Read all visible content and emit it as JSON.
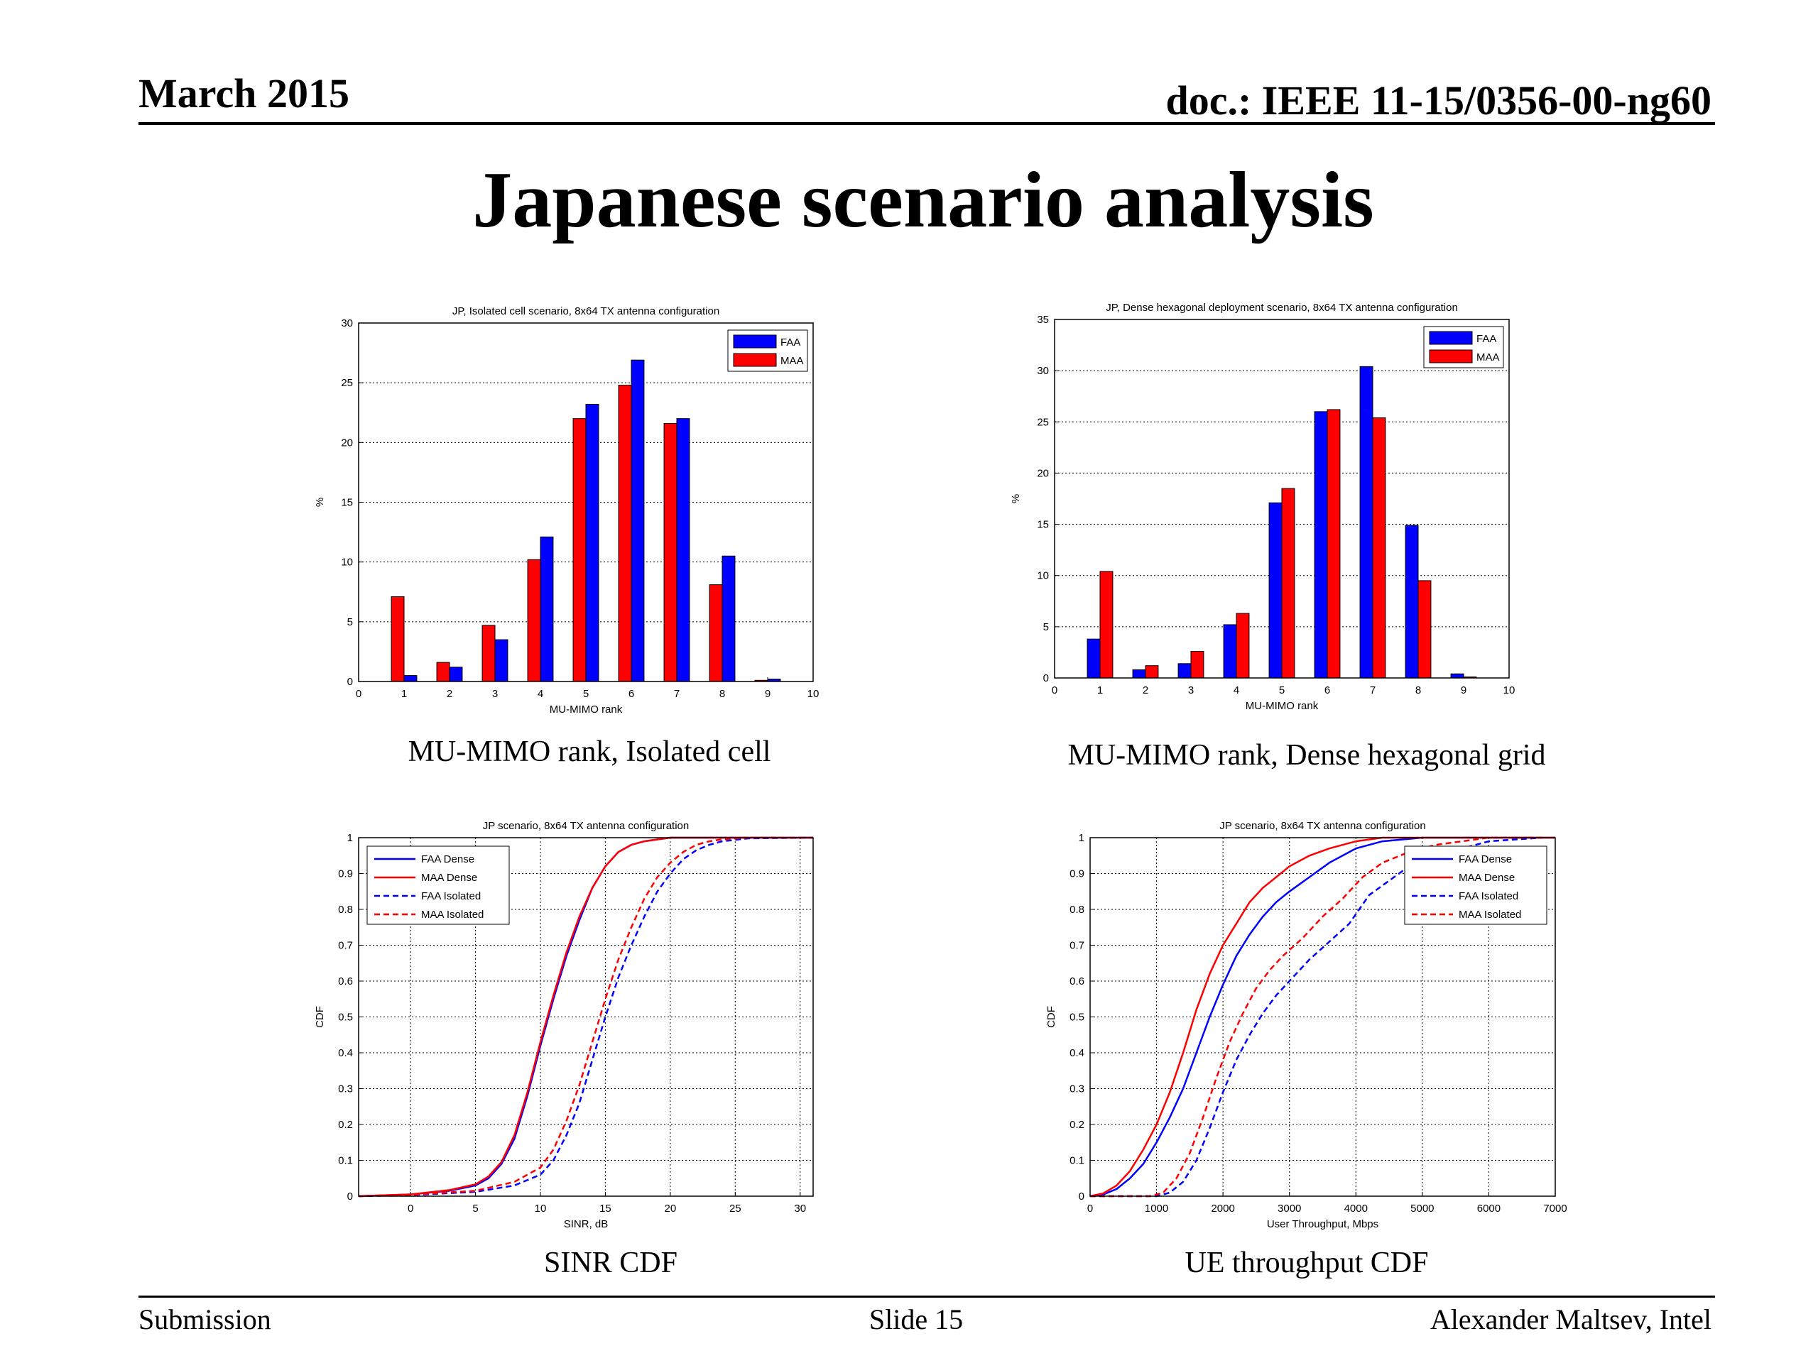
{
  "header": {
    "date": "March 2015",
    "doc": "doc.: IEEE 11-15/0356-00-ng60"
  },
  "title": "Japanese scenario analysis",
  "footer": {
    "left": "Submission",
    "center": "Slide 15",
    "right": "Alexander Maltsev, Intel"
  },
  "captions": {
    "c1": "MU-MIMO rank, Isolated cell",
    "c2": "MU-MIMO rank, Dense hexagonal grid",
    "c3": "SINR CDF",
    "c4": "UE throughput CDF"
  },
  "colors": {
    "faa": "#0000ff",
    "maa": "#ff0000"
  },
  "chart_data": [
    {
      "type": "bar",
      "title": "JP, Isolated cell scenario, 8x64 TX antenna configuration",
      "xlabel": "MU-MIMO rank",
      "ylabel": "%",
      "xlim": [
        0,
        10
      ],
      "ylim": [
        0,
        30
      ],
      "xticks": [
        0,
        1,
        2,
        3,
        4,
        5,
        6,
        7,
        8,
        9,
        10
      ],
      "yticks": [
        0,
        5,
        10,
        15,
        20,
        25,
        30
      ],
      "categories": [
        1,
        2,
        3,
        4,
        5,
        6,
        7,
        8,
        9
      ],
      "series": [
        {
          "name": "FAA",
          "values": [
            0.5,
            1.2,
            3.5,
            12.1,
            23.2,
            26.9,
            22.0,
            10.5,
            0.2
          ]
        },
        {
          "name": "MAA",
          "values": [
            7.1,
            1.6,
            4.7,
            10.2,
            22.0,
            24.8,
            21.6,
            8.1,
            0.1
          ]
        }
      ],
      "legend": [
        "FAA",
        "MAA"
      ],
      "bar_order": [
        "MAA",
        "FAA"
      ],
      "legend_position": "top-right"
    },
    {
      "type": "bar",
      "title": "JP, Dense hexagonal deployment scenario, 8x64 TX antenna configuration",
      "xlabel": "MU-MIMO rank",
      "ylabel": "%",
      "xlim": [
        0,
        10
      ],
      "ylim": [
        0,
        35
      ],
      "xticks": [
        0,
        1,
        2,
        3,
        4,
        5,
        6,
        7,
        8,
        9,
        10
      ],
      "yticks": [
        0,
        5,
        10,
        15,
        20,
        25,
        30,
        35
      ],
      "categories": [
        1,
        2,
        3,
        4,
        5,
        6,
        7,
        8,
        9
      ],
      "series": [
        {
          "name": "FAA",
          "values": [
            3.8,
            0.8,
            1.4,
            5.2,
            17.1,
            26.0,
            30.4,
            14.9,
            0.4
          ]
        },
        {
          "name": "MAA",
          "values": [
            10.4,
            1.2,
            2.6,
            6.3,
            18.5,
            26.2,
            25.4,
            9.5,
            0.1
          ]
        }
      ],
      "legend": [
        "FAA",
        "MAA"
      ],
      "bar_order": [
        "FAA",
        "MAA"
      ],
      "legend_position": "top-right"
    },
    {
      "type": "line",
      "title": "JP scenario, 8x64 TX antenna configuration",
      "xlabel": "SINR, dB",
      "ylabel": "CDF",
      "xlim": [
        -4,
        31
      ],
      "ylim": [
        0,
        1
      ],
      "xticks": [
        0,
        5,
        10,
        15,
        20,
        25,
        30
      ],
      "yticks": [
        0,
        0.1,
        0.2,
        0.3,
        0.4,
        0.5,
        0.6,
        0.7,
        0.8,
        0.9,
        1
      ],
      "legend_position": "top-left",
      "series": [
        {
          "name": "FAA Dense",
          "style": "solid",
          "color": "#0000ff",
          "x": [
            -4,
            0,
            3,
            5,
            6,
            7,
            8,
            9,
            10,
            11,
            12,
            13,
            14,
            15,
            16,
            17,
            18,
            19,
            20,
            22,
            31
          ],
          "y": [
            0,
            0.005,
            0.015,
            0.03,
            0.05,
            0.09,
            0.16,
            0.28,
            0.42,
            0.55,
            0.67,
            0.77,
            0.86,
            0.92,
            0.96,
            0.98,
            0.99,
            0.995,
            1,
            1,
            1
          ]
        },
        {
          "name": "MAA Dense",
          "style": "solid",
          "color": "#ff0000",
          "x": [
            -4,
            0,
            3,
            5,
            6,
            7,
            8,
            9,
            10,
            11,
            12,
            13,
            14,
            15,
            16,
            17,
            18,
            19,
            20,
            22,
            31
          ],
          "y": [
            0,
            0.005,
            0.017,
            0.033,
            0.055,
            0.095,
            0.17,
            0.29,
            0.43,
            0.56,
            0.68,
            0.78,
            0.86,
            0.92,
            0.96,
            0.98,
            0.99,
            0.995,
            1,
            1,
            1
          ]
        },
        {
          "name": "FAA Isolated",
          "style": "dashed",
          "color": "#0000ff",
          "x": [
            -4,
            0,
            5,
            8,
            10,
            11,
            12,
            13,
            14,
            15,
            16,
            17,
            18,
            19,
            20,
            21,
            22,
            23,
            24,
            26,
            31
          ],
          "y": [
            0,
            0.003,
            0.012,
            0.03,
            0.06,
            0.1,
            0.17,
            0.26,
            0.38,
            0.5,
            0.61,
            0.7,
            0.78,
            0.85,
            0.9,
            0.94,
            0.965,
            0.98,
            0.99,
            0.998,
            1
          ]
        },
        {
          "name": "MAA Isolated",
          "style": "dashed",
          "color": "#ff0000",
          "x": [
            -4,
            0,
            5,
            8,
            10,
            11,
            12,
            13,
            14,
            15,
            16,
            17,
            18,
            19,
            20,
            21,
            22,
            23,
            24,
            26,
            31
          ],
          "y": [
            0,
            0.004,
            0.015,
            0.04,
            0.08,
            0.13,
            0.21,
            0.31,
            0.43,
            0.55,
            0.66,
            0.75,
            0.83,
            0.89,
            0.93,
            0.96,
            0.98,
            0.99,
            0.995,
            1,
            1
          ]
        }
      ]
    },
    {
      "type": "line",
      "title": "JP scenario, 8x64 TX antenna configuration",
      "xlabel": "User Throughput, Mbps",
      "ylabel": "CDF",
      "xlim": [
        0,
        7000
      ],
      "ylim": [
        0,
        1
      ],
      "xticks": [
        0,
        1000,
        2000,
        3000,
        4000,
        5000,
        6000,
        7000
      ],
      "yticks": [
        0,
        0.1,
        0.2,
        0.3,
        0.4,
        0.5,
        0.6,
        0.7,
        0.8,
        0.9,
        1
      ],
      "legend_position": "top-right",
      "series": [
        {
          "name": "FAA Dense",
          "style": "solid",
          "color": "#0000ff",
          "x": [
            0,
            200,
            400,
            600,
            800,
            1000,
            1200,
            1400,
            1600,
            1800,
            2000,
            2200,
            2400,
            2600,
            2800,
            3000,
            3300,
            3600,
            4000,
            4400,
            5000,
            7000
          ],
          "y": [
            0,
            0.005,
            0.02,
            0.05,
            0.09,
            0.15,
            0.22,
            0.3,
            0.4,
            0.5,
            0.59,
            0.67,
            0.73,
            0.78,
            0.82,
            0.85,
            0.89,
            0.93,
            0.97,
            0.99,
            1,
            1
          ]
        },
        {
          "name": "MAA Dense",
          "style": "solid",
          "color": "#ff0000",
          "x": [
            0,
            200,
            400,
            600,
            800,
            1000,
            1200,
            1400,
            1600,
            1800,
            2000,
            2200,
            2400,
            2600,
            2800,
            3000,
            3300,
            3600,
            4000,
            4400,
            5000,
            7000
          ],
          "y": [
            0,
            0.008,
            0.03,
            0.07,
            0.13,
            0.2,
            0.29,
            0.4,
            0.52,
            0.62,
            0.7,
            0.76,
            0.82,
            0.86,
            0.89,
            0.92,
            0.95,
            0.97,
            0.99,
            1,
            1,
            1
          ]
        },
        {
          "name": "FAA Isolated",
          "style": "dashed",
          "color": "#0000ff",
          "x": [
            0,
            1000,
            1200,
            1400,
            1600,
            1800,
            2000,
            2200,
            2400,
            2600,
            2800,
            3000,
            3300,
            3600,
            3900,
            4200,
            4500,
            4800,
            5200,
            5600,
            6000,
            6800
          ],
          "y": [
            0,
            0,
            0.01,
            0.04,
            0.1,
            0.19,
            0.29,
            0.38,
            0.45,
            0.51,
            0.56,
            0.6,
            0.66,
            0.71,
            0.76,
            0.84,
            0.88,
            0.92,
            0.95,
            0.97,
            0.99,
            1
          ]
        },
        {
          "name": "MAA Isolated",
          "style": "dashed",
          "color": "#ff0000",
          "x": [
            0,
            900,
            1100,
            1300,
            1500,
            1700,
            1900,
            2100,
            2300,
            2500,
            2700,
            2900,
            3200,
            3500,
            3800,
            4100,
            4400,
            4800,
            5200,
            5600,
            6000,
            6800
          ],
          "y": [
            0,
            0,
            0.01,
            0.05,
            0.12,
            0.22,
            0.33,
            0.43,
            0.51,
            0.58,
            0.63,
            0.67,
            0.72,
            0.78,
            0.83,
            0.89,
            0.93,
            0.96,
            0.98,
            0.99,
            1,
            1
          ]
        }
      ]
    }
  ]
}
